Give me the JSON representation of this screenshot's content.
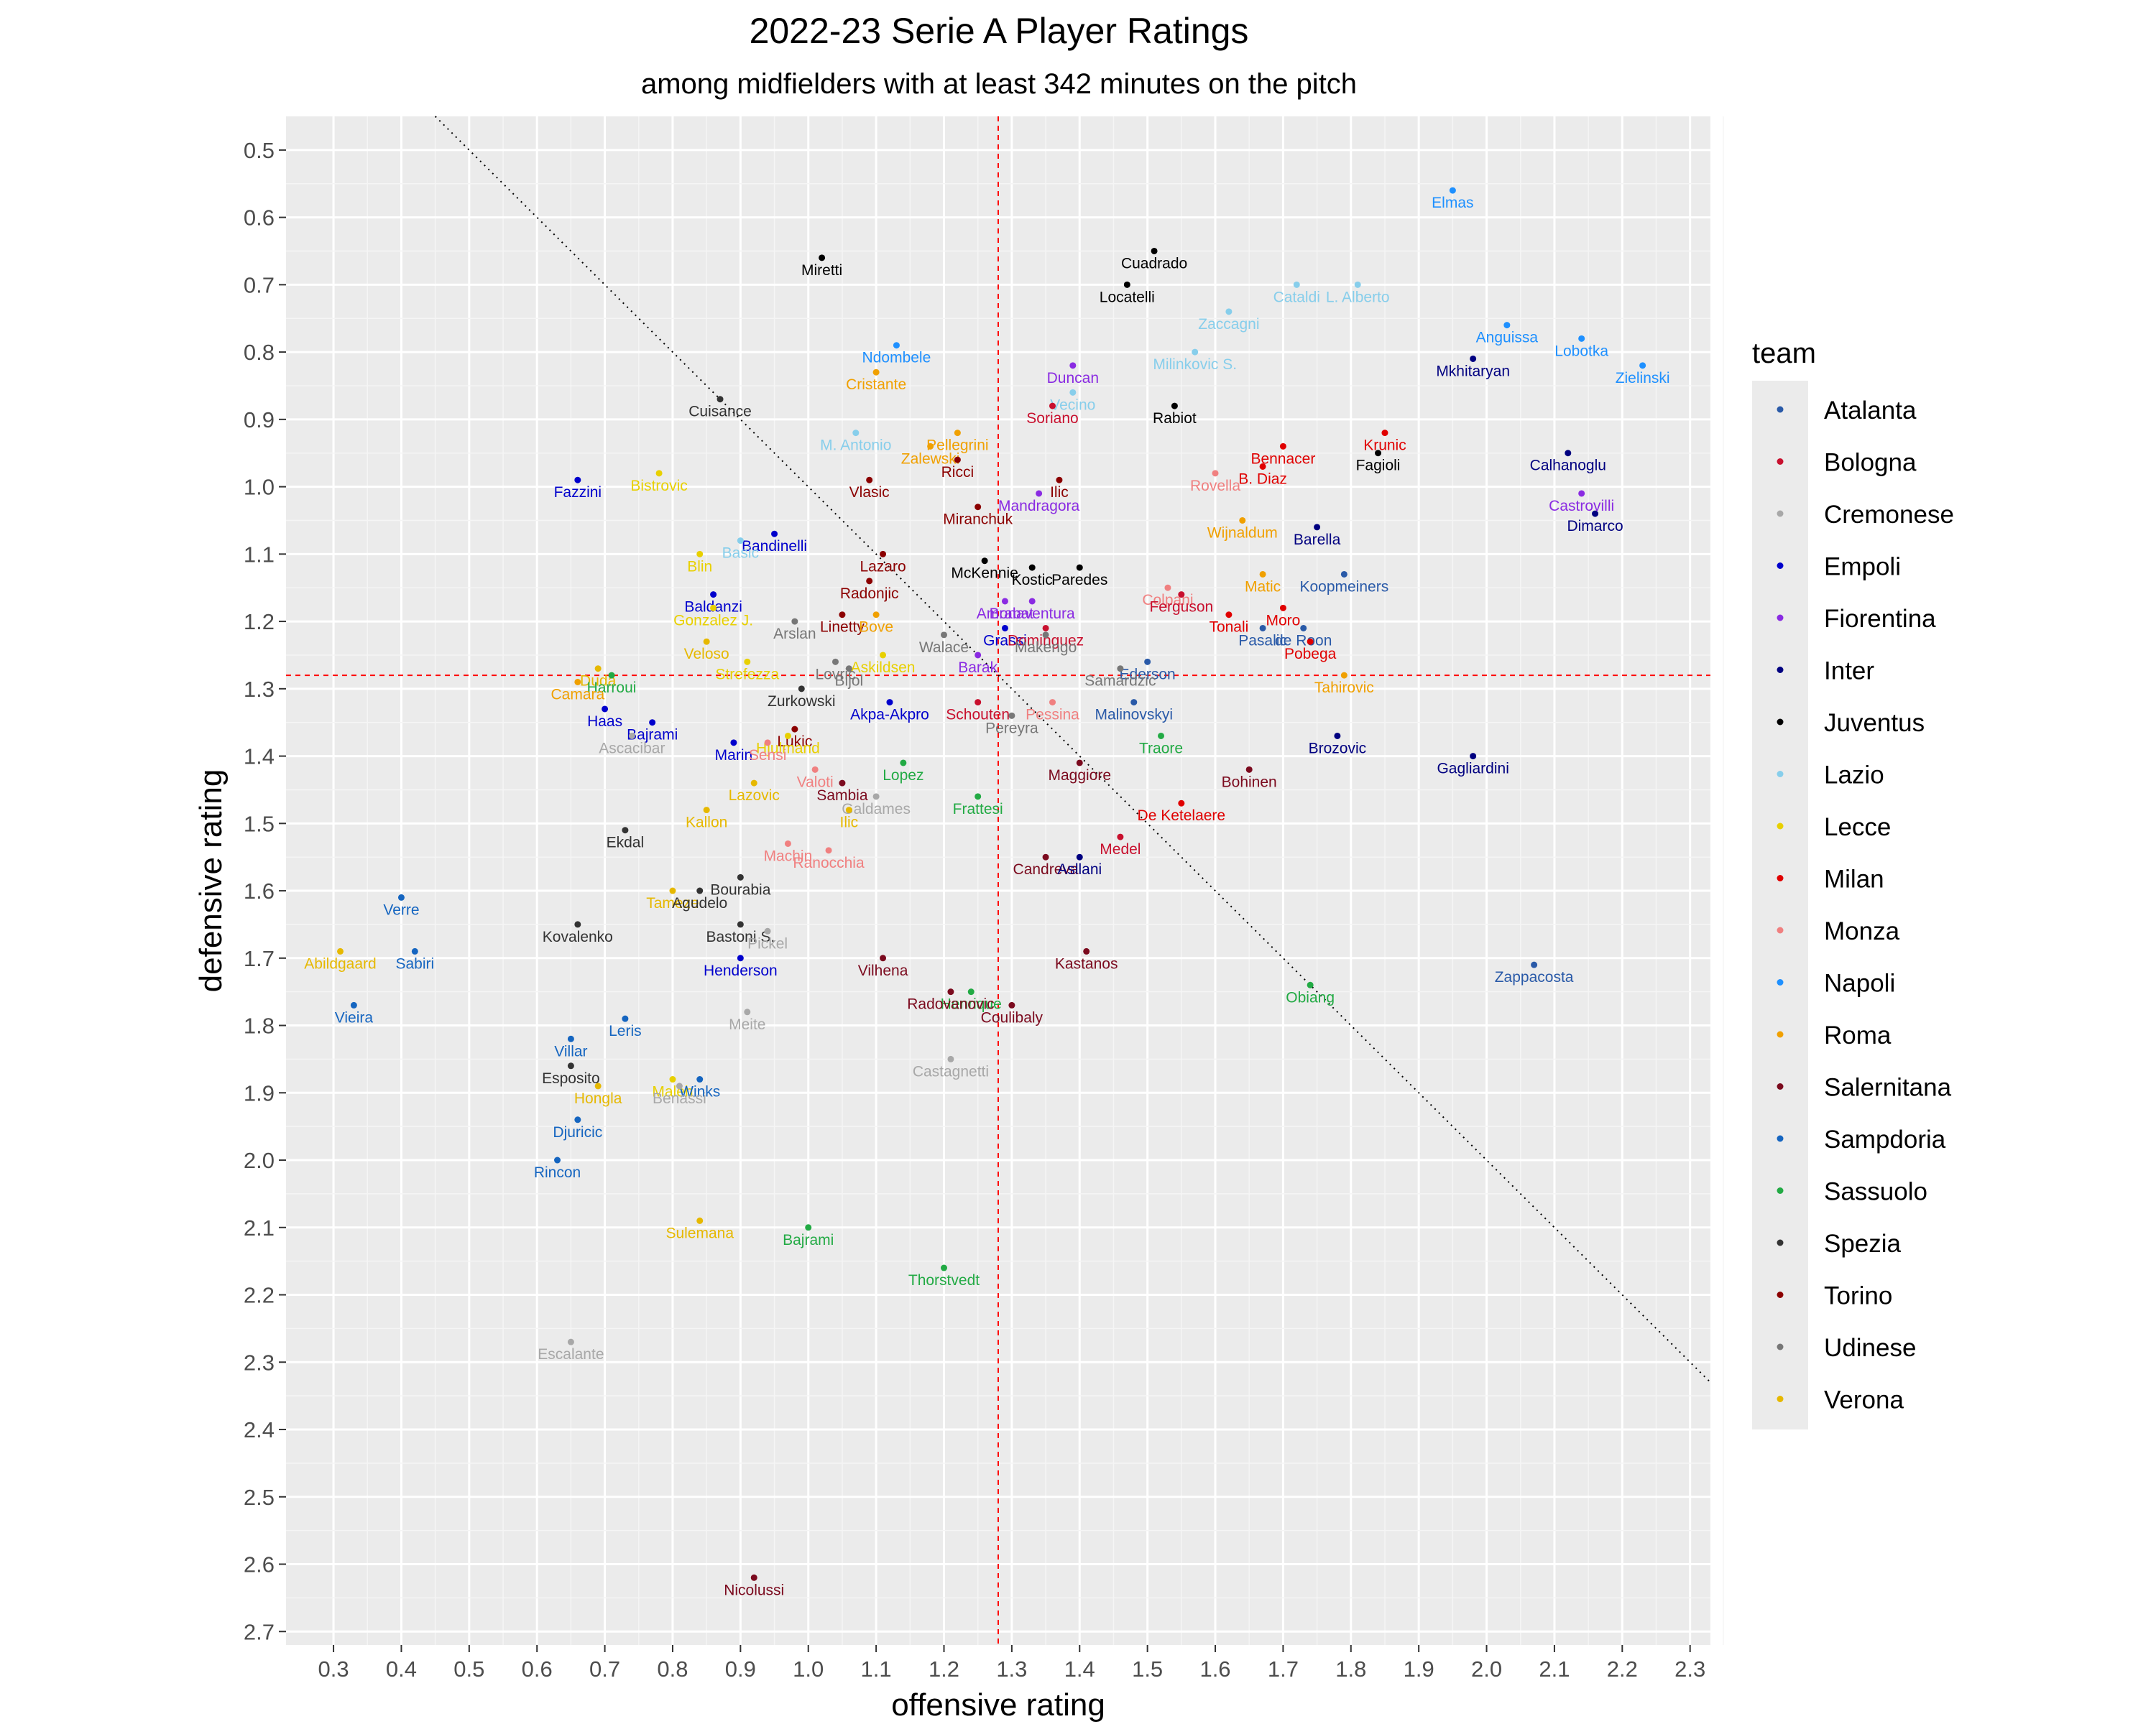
{
  "chart_data": {
    "type": "scatter",
    "title": "2022-23 Serie A Player Ratings",
    "subtitle": "among midfielders with at least 342 minutes on the pitch",
    "xlabel": "offensive rating",
    "ylabel": "defensive rating",
    "xlim": [
      0.23,
      2.33
    ],
    "ylim": [
      0.45,
      2.72
    ],
    "y_reversed": true,
    "x_ticks": [
      "0.3",
      "0.4",
      "0.5",
      "0.6",
      "0.7",
      "0.8",
      "0.9",
      "1.0",
      "1.1",
      "1.2",
      "1.3",
      "1.4",
      "1.5",
      "1.6",
      "1.7",
      "1.8",
      "1.9",
      "2.0",
      "2.1",
      "2.2",
      "2.3"
    ],
    "y_ticks": [
      "0.5",
      "0.6",
      "0.7",
      "0.8",
      "0.9",
      "1.0",
      "1.1",
      "1.2",
      "1.3",
      "1.4",
      "1.5",
      "1.6",
      "1.7",
      "1.8",
      "1.9",
      "2.0",
      "2.1",
      "2.2",
      "2.3",
      "2.4",
      "2.5",
      "2.6",
      "2.7"
    ],
    "grid": true,
    "reference_lines": {
      "vertical_x": 1.28,
      "horizontal_y": 1.28,
      "diagonal": [
        [
          0.45,
          0.45
        ],
        [
          2.33,
          2.33
        ]
      ]
    },
    "legend": {
      "title": "team",
      "placement": "right",
      "entries": [
        {
          "name": "Atalanta",
          "color": "#2a5aa8"
        },
        {
          "name": "Bologna",
          "color": "#c8102e"
        },
        {
          "name": "Cremonese",
          "color": "#a8a8a8"
        },
        {
          "name": "Empoli",
          "color": "#0000cc"
        },
        {
          "name": "Fiorentina",
          "color": "#8a2be2"
        },
        {
          "name": "Inter",
          "color": "#000080"
        },
        {
          "name": "Juventus",
          "color": "#000000"
        },
        {
          "name": "Lazio",
          "color": "#87ceeb"
        },
        {
          "name": "Lecce",
          "color": "#e8d000"
        },
        {
          "name": "Milan",
          "color": "#e00000"
        },
        {
          "name": "Monza",
          "color": "#f08080"
        },
        {
          "name": "Napoli",
          "color": "#1e90ff"
        },
        {
          "name": "Roma",
          "color": "#f0a000"
        },
        {
          "name": "Salernitana",
          "color": "#7b0a1e"
        },
        {
          "name": "Sampdoria",
          "color": "#1565c0"
        },
        {
          "name": "Sassuolo",
          "color": "#22aa44"
        },
        {
          "name": "Spezia",
          "color": "#333333"
        },
        {
          "name": "Torino",
          "color": "#8b0000"
        },
        {
          "name": "Udinese",
          "color": "#777777"
        },
        {
          "name": "Verona",
          "color": "#e6b800"
        }
      ]
    },
    "points": [
      {
        "name": "Elmas",
        "team": "Napoli",
        "x": 1.95,
        "y": 0.56
      },
      {
        "name": "Cuadrado",
        "team": "Juventus",
        "x": 1.51,
        "y": 0.65
      },
      {
        "name": "Miretti",
        "team": "Juventus",
        "x": 1.02,
        "y": 0.66
      },
      {
        "name": "Cataldi",
        "team": "Lazio",
        "x": 1.72,
        "y": 0.7
      },
      {
        "name": "L. Alberto",
        "team": "Lazio",
        "x": 1.81,
        "y": 0.7
      },
      {
        "name": "Locatelli",
        "team": "Juventus",
        "x": 1.47,
        "y": 0.7
      },
      {
        "name": "Zaccagni",
        "team": "Lazio",
        "x": 1.62,
        "y": 0.74
      },
      {
        "name": "Anguissa",
        "team": "Napoli",
        "x": 2.03,
        "y": 0.76
      },
      {
        "name": "Ndombele",
        "team": "Napoli",
        "x": 1.13,
        "y": 0.79
      },
      {
        "name": "Lobotka",
        "team": "Napoli",
        "x": 2.14,
        "y": 0.78
      },
      {
        "name": "Mkhitaryan",
        "team": "Inter",
        "x": 1.98,
        "y": 0.81
      },
      {
        "name": "Duncan",
        "team": "Fiorentina",
        "x": 1.39,
        "y": 0.82
      },
      {
        "name": "Milinkovic S.",
        "team": "Lazio",
        "x": 1.57,
        "y": 0.8
      },
      {
        "name": "Zielinski",
        "team": "Napoli",
        "x": 2.23,
        "y": 0.82
      },
      {
        "name": "Cristante",
        "team": "Roma",
        "x": 1.1,
        "y": 0.83
      },
      {
        "name": "Vecino",
        "team": "Lazio",
        "x": 1.39,
        "y": 0.86
      },
      {
        "name": "Cuisance",
        "team": "Spezia",
        "x": 0.87,
        "y": 0.87
      },
      {
        "name": "Rabiot",
        "team": "Juventus",
        "x": 1.54,
        "y": 0.88
      },
      {
        "name": "Soriano",
        "team": "Bologna",
        "x": 1.36,
        "y": 0.88
      },
      {
        "name": "Krunic",
        "team": "Milan",
        "x": 1.85,
        "y": 0.92
      },
      {
        "name": "M. Antonio",
        "team": "Lazio",
        "x": 1.07,
        "y": 0.92
      },
      {
        "name": "Pellegrini",
        "team": "Roma",
        "x": 1.22,
        "y": 0.92
      },
      {
        "name": "Bennacer",
        "team": "Milan",
        "x": 1.7,
        "y": 0.94
      },
      {
        "name": "Zalewski",
        "team": "Roma",
        "x": 1.18,
        "y": 0.94
      },
      {
        "name": "Calhanoglu",
        "team": "Inter",
        "x": 2.12,
        "y": 0.95
      },
      {
        "name": "Fagioli",
        "team": "Juventus",
        "x": 1.84,
        "y": 0.95
      },
      {
        "name": "B. Diaz",
        "team": "Milan",
        "x": 1.67,
        "y": 0.97
      },
      {
        "name": "Bistrovic",
        "team": "Lecce",
        "x": 0.78,
        "y": 0.98
      },
      {
        "name": "Ricci",
        "team": "Torino",
        "x": 1.22,
        "y": 0.96
      },
      {
        "name": "Rovella",
        "team": "Monza",
        "x": 1.6,
        "y": 0.98
      },
      {
        "name": "Ilic",
        "team": "Torino",
        "x": 1.37,
        "y": 0.99
      },
      {
        "name": "Fazzini",
        "team": "Empoli",
        "x": 0.66,
        "y": 0.99
      },
      {
        "name": "Vlasic",
        "team": "Torino",
        "x": 1.09,
        "y": 0.99
      },
      {
        "name": "Castrovilli",
        "team": "Fiorentina",
        "x": 2.14,
        "y": 1.01
      },
      {
        "name": "Mandragora",
        "team": "Fiorentina",
        "x": 1.34,
        "y": 1.01
      },
      {
        "name": "Miranchuk",
        "team": "Torino",
        "x": 1.25,
        "y": 1.03
      },
      {
        "name": "Dimarco",
        "team": "Inter",
        "x": 2.16,
        "y": 1.04
      },
      {
        "name": "Barella",
        "team": "Inter",
        "x": 1.75,
        "y": 1.06
      },
      {
        "name": "Wijnaldum",
        "team": "Roma",
        "x": 1.64,
        "y": 1.05
      },
      {
        "name": "Bandinelli",
        "team": "Empoli",
        "x": 0.95,
        "y": 1.07
      },
      {
        "name": "Basic",
        "team": "Lazio",
        "x": 0.9,
        "y": 1.08
      },
      {
        "name": "Lazaro",
        "team": "Torino",
        "x": 1.11,
        "y": 1.1
      },
      {
        "name": "McKennie",
        "team": "Juventus",
        "x": 1.26,
        "y": 1.11
      },
      {
        "name": "Paredes",
        "team": "Juventus",
        "x": 1.4,
        "y": 1.12
      },
      {
        "name": "Blin",
        "team": "Lecce",
        "x": 0.84,
        "y": 1.1
      },
      {
        "name": "Matic",
        "team": "Roma",
        "x": 1.67,
        "y": 1.13
      },
      {
        "name": "Koopmeiners",
        "team": "Atalanta",
        "x": 1.79,
        "y": 1.13
      },
      {
        "name": "Radonjic",
        "team": "Torino",
        "x": 1.09,
        "y": 1.14
      },
      {
        "name": "Kostic",
        "team": "Juventus",
        "x": 1.33,
        "y": 1.12
      },
      {
        "name": "Colpani",
        "team": "Monza",
        "x": 1.53,
        "y": 1.15
      },
      {
        "name": "Baldanzi",
        "team": "Empoli",
        "x": 0.86,
        "y": 1.16
      },
      {
        "name": "Amrabat",
        "team": "Fiorentina",
        "x": 1.29,
        "y": 1.17
      },
      {
        "name": "Bonaventura",
        "team": "Fiorentina",
        "x": 1.33,
        "y": 1.17
      },
      {
        "name": "Ferguson",
        "team": "Bologna",
        "x": 1.55,
        "y": 1.16
      },
      {
        "name": "Moro",
        "team": "Milan",
        "x": 1.7,
        "y": 1.18
      },
      {
        "name": "Linetty",
        "team": "Torino",
        "x": 1.05,
        "y": 1.19
      },
      {
        "name": "Bove",
        "team": "Roma",
        "x": 1.1,
        "y": 1.19
      },
      {
        "name": "Grassi",
        "team": "Empoli",
        "x": 1.29,
        "y": 1.21
      },
      {
        "name": "Dominguez",
        "team": "Bologna",
        "x": 1.35,
        "y": 1.21
      },
      {
        "name": "Tonali",
        "team": "Milan",
        "x": 1.62,
        "y": 1.19
      },
      {
        "name": "de Roon",
        "team": "Atalanta",
        "x": 1.73,
        "y": 1.21
      },
      {
        "name": "Gonzalez J.",
        "team": "Lecce",
        "x": 0.86,
        "y": 1.18
      },
      {
        "name": "Arslan",
        "team": "Udinese",
        "x": 0.98,
        "y": 1.2
      },
      {
        "name": "Walace",
        "team": "Udinese",
        "x": 1.2,
        "y": 1.22
      },
      {
        "name": "Pasalic",
        "team": "Atalanta",
        "x": 1.67,
        "y": 1.21
      },
      {
        "name": "Veloso",
        "team": "Verona",
        "x": 0.85,
        "y": 1.23
      },
      {
        "name": "Makengo",
        "team": "Udinese",
        "x": 1.35,
        "y": 1.22
      },
      {
        "name": "Askildsen",
        "team": "Lecce",
        "x": 1.11,
        "y": 1.25
      },
      {
        "name": "Ederson",
        "team": "Atalanta",
        "x": 1.5,
        "y": 1.26
      },
      {
        "name": "Pobega",
        "team": "Milan",
        "x": 1.74,
        "y": 1.23
      },
      {
        "name": "Strefezza",
        "team": "Lecce",
        "x": 0.91,
        "y": 1.26
      },
      {
        "name": "Duda",
        "team": "Verona",
        "x": 0.69,
        "y": 1.27
      },
      {
        "name": "Lovric",
        "team": "Udinese",
        "x": 1.04,
        "y": 1.26
      },
      {
        "name": "Bijol",
        "team": "Udinese",
        "x": 1.06,
        "y": 1.27
      },
      {
        "name": "Barak",
        "team": "Fiorentina",
        "x": 1.25,
        "y": 1.25
      },
      {
        "name": "Samardzic",
        "team": "Udinese",
        "x": 1.46,
        "y": 1.27
      },
      {
        "name": "Harroui",
        "team": "Sassuolo",
        "x": 0.71,
        "y": 1.28
      },
      {
        "name": "Tahirovic",
        "team": "Roma",
        "x": 1.79,
        "y": 1.28
      },
      {
        "name": "Camara",
        "team": "Roma",
        "x": 0.66,
        "y": 1.29
      },
      {
        "name": "Zurkowski",
        "team": "Spezia",
        "x": 0.99,
        "y": 1.3
      },
      {
        "name": "Schouten",
        "team": "Bologna",
        "x": 1.25,
        "y": 1.32
      },
      {
        "name": "Pessina",
        "team": "Monza",
        "x": 1.36,
        "y": 1.32
      },
      {
        "name": "Akpa-Akpro",
        "team": "Empoli",
        "x": 1.12,
        "y": 1.32
      },
      {
        "name": "Haas",
        "team": "Empoli",
        "x": 0.7,
        "y": 1.33
      },
      {
        "name": "Bajrami",
        "team": "Empoli",
        "x": 0.77,
        "y": 1.35
      },
      {
        "name": "Malinovskyi",
        "team": "Atalanta",
        "x": 1.48,
        "y": 1.32
      },
      {
        "name": "Traore",
        "team": "Sassuolo",
        "x": 1.52,
        "y": 1.37
      },
      {
        "name": "Pereyra",
        "team": "Udinese",
        "x": 1.3,
        "y": 1.34
      },
      {
        "name": "Lukic",
        "team": "Torino",
        "x": 0.98,
        "y": 1.36
      },
      {
        "name": "Hjulmand",
        "team": "Lecce",
        "x": 0.97,
        "y": 1.37
      },
      {
        "name": "Marin",
        "team": "Empoli",
        "x": 0.89,
        "y": 1.38
      },
      {
        "name": "Ascacibar",
        "team": "Cremonese",
        "x": 0.74,
        "y": 1.37
      },
      {
        "name": "Brozovic",
        "team": "Inter",
        "x": 1.78,
        "y": 1.37
      },
      {
        "name": "Sensi",
        "team": "Monza",
        "x": 0.94,
        "y": 1.38
      },
      {
        "name": "Maggiore",
        "team": "Salernitana",
        "x": 1.4,
        "y": 1.41
      },
      {
        "name": "Gagliardini",
        "team": "Inter",
        "x": 1.98,
        "y": 1.4
      },
      {
        "name": "Valoti",
        "team": "Monza",
        "x": 1.01,
        "y": 1.42
      },
      {
        "name": "Lopez",
        "team": "Sassuolo",
        "x": 1.14,
        "y": 1.41
      },
      {
        "name": "Bohinen",
        "team": "Salernitana",
        "x": 1.65,
        "y": 1.42
      },
      {
        "name": "Galdames",
        "team": "Cremonese",
        "x": 1.1,
        "y": 1.46
      },
      {
        "name": "Sambia",
        "team": "Salernitana",
        "x": 1.05,
        "y": 1.44
      },
      {
        "name": "Lazovic",
        "team": "Verona",
        "x": 0.92,
        "y": 1.44
      },
      {
        "name": "Frattesi",
        "team": "Sassuolo",
        "x": 1.25,
        "y": 1.46
      },
      {
        "name": "Ilic",
        "team": "Verona",
        "x": 1.06,
        "y": 1.48
      },
      {
        "name": "Kallon",
        "team": "Verona",
        "x": 0.85,
        "y": 1.48
      },
      {
        "name": "De Ketelaere",
        "team": "Milan",
        "x": 1.55,
        "y": 1.47
      },
      {
        "name": "Ekdal",
        "team": "Spezia",
        "x": 0.73,
        "y": 1.51
      },
      {
        "name": "Machin",
        "team": "Monza",
        "x": 0.97,
        "y": 1.53
      },
      {
        "name": "Candreva",
        "team": "Salernitana",
        "x": 1.35,
        "y": 1.55
      },
      {
        "name": "Medel",
        "team": "Bologna",
        "x": 1.46,
        "y": 1.52
      },
      {
        "name": "Ranocchia",
        "team": "Monza",
        "x": 1.03,
        "y": 1.54
      },
      {
        "name": "Asllani",
        "team": "Inter",
        "x": 1.4,
        "y": 1.55
      },
      {
        "name": "Bourabia",
        "team": "Spezia",
        "x": 0.9,
        "y": 1.58
      },
      {
        "name": "Verre",
        "team": "Sampdoria",
        "x": 0.4,
        "y": 1.61
      },
      {
        "name": "Tameze",
        "team": "Verona",
        "x": 0.8,
        "y": 1.6
      },
      {
        "name": "Agudelo",
        "team": "Spezia",
        "x": 0.84,
        "y": 1.6
      },
      {
        "name": "Kovalenko",
        "team": "Spezia",
        "x": 0.66,
        "y": 1.65
      },
      {
        "name": "Bastoni S.",
        "team": "Spezia",
        "x": 0.9,
        "y": 1.65
      },
      {
        "name": "Pickel",
        "team": "Cremonese",
        "x": 0.94,
        "y": 1.66
      },
      {
        "name": "Abildgaard",
        "team": "Verona",
        "x": 0.31,
        "y": 1.69
      },
      {
        "name": "Sabiri",
        "team": "Sampdoria",
        "x": 0.42,
        "y": 1.69
      },
      {
        "name": "Kastanos",
        "team": "Salernitana",
        "x": 1.41,
        "y": 1.69
      },
      {
        "name": "Henderson",
        "team": "Empoli",
        "x": 0.9,
        "y": 1.7
      },
      {
        "name": "Vilhena",
        "team": "Salernitana",
        "x": 1.11,
        "y": 1.7
      },
      {
        "name": "Zappacosta",
        "team": "Atalanta",
        "x": 2.07,
        "y": 1.71
      },
      {
        "name": "Henrique",
        "team": "Sassuolo",
        "x": 1.24,
        "y": 1.75
      },
      {
        "name": "Obiang",
        "team": "Sassuolo",
        "x": 1.74,
        "y": 1.74
      },
      {
        "name": "Meite",
        "team": "Cremonese",
        "x": 0.91,
        "y": 1.78
      },
      {
        "name": "Radovanovic",
        "team": "Salernitana",
        "x": 1.21,
        "y": 1.75
      },
      {
        "name": "Vieira",
        "team": "Sampdoria",
        "x": 0.33,
        "y": 1.77
      },
      {
        "name": "Coulibaly",
        "team": "Salernitana",
        "x": 1.3,
        "y": 1.77
      },
      {
        "name": "Villar",
        "team": "Sampdoria",
        "x": 0.65,
        "y": 1.82
      },
      {
        "name": "Leris",
        "team": "Sampdoria",
        "x": 0.73,
        "y": 1.79
      },
      {
        "name": "Esposito",
        "team": "Spezia",
        "x": 0.65,
        "y": 1.86
      },
      {
        "name": "Castagnetti",
        "team": "Cremonese",
        "x": 1.21,
        "y": 1.85
      },
      {
        "name": "Maleh",
        "team": "Lecce",
        "x": 0.8,
        "y": 1.88
      },
      {
        "name": "Winks",
        "team": "Sampdoria",
        "x": 0.84,
        "y": 1.88
      },
      {
        "name": "Benassi",
        "team": "Cremonese",
        "x": 0.81,
        "y": 1.89
      },
      {
        "name": "Hongla",
        "team": "Verona",
        "x": 0.69,
        "y": 1.89
      },
      {
        "name": "Djuricic",
        "team": "Sampdoria",
        "x": 0.66,
        "y": 1.94
      },
      {
        "name": "Rincon",
        "team": "Sampdoria",
        "x": 0.63,
        "y": 2.0
      },
      {
        "name": "Sulemana",
        "team": "Verona",
        "x": 0.84,
        "y": 2.09
      },
      {
        "name": "Bajrami",
        "team": "Sassuolo",
        "x": 1.0,
        "y": 2.1
      },
      {
        "name": "Thorstvedt",
        "team": "Sassuolo",
        "x": 1.2,
        "y": 2.16
      },
      {
        "name": "Escalante",
        "team": "Cremonese",
        "x": 0.65,
        "y": 2.27
      },
      {
        "name": "Nicolussi",
        "team": "Salernitana",
        "x": 0.92,
        "y": 2.62
      }
    ]
  }
}
